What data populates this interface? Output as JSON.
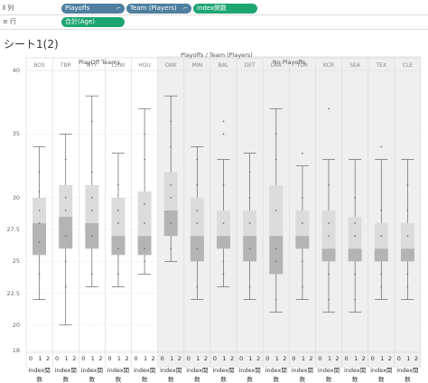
{
  "shelves": {
    "columns": {
      "label": "列",
      "icon": "columns-icon",
      "pills": [
        {
          "label": "Playoffs",
          "color": "#4f7f9f"
        },
        {
          "label": "Team (Players)",
          "color": "#4f7f9f"
        },
        {
          "label": "index関数",
          "color": "#1ea672"
        }
      ]
    },
    "rows": {
      "label": "行",
      "icon": "rows-icon",
      "pills": [
        {
          "label": "合計(Age)",
          "color": "#1ea672"
        }
      ]
    }
  },
  "sheet_title": "シート1(2)",
  "header": {
    "top": "Playoffs / Team (Players)",
    "groups": [
      "PlayOff Teams",
      "No Playoffs"
    ]
  },
  "chart_data": {
    "type": "box",
    "ylim": [
      18,
      40
    ],
    "yticks": [
      18,
      20,
      22.5,
      25,
      27.5,
      30,
      35,
      40
    ],
    "x_axis_label": "index関数",
    "x_tick_labels": [
      "0",
      "1",
      "2"
    ],
    "teams": [
      {
        "name": "BOS",
        "group": "PlayOff Teams",
        "whisker_low": 22,
        "q1": 25.5,
        "median": 28,
        "q3": 30,
        "whisker_high": 34,
        "points": [
          24,
          26.5,
          28,
          29,
          30.5,
          32
        ]
      },
      {
        "name": "TBR",
        "group": "PlayOff Teams",
        "whisker_low": 20,
        "q1": 26,
        "median": 28.5,
        "q3": 31,
        "whisker_high": 35,
        "points": [
          23,
          25,
          27,
          29,
          30,
          33
        ]
      },
      {
        "name": "NYY",
        "group": "PlayOff Teams",
        "whisker_low": 23,
        "q1": 26,
        "median": 28,
        "q3": 31,
        "whisker_high": 38,
        "points": [
          24,
          27,
          29,
          30,
          32,
          36
        ]
      },
      {
        "name": "CHW",
        "group": "PlayOff Teams",
        "whisker_low": 23,
        "q1": 25.5,
        "median": 27,
        "q3": 30,
        "whisker_high": 33.5,
        "points": [
          24,
          26,
          28,
          29,
          31
        ]
      },
      {
        "name": "HOU",
        "group": "PlayOff Teams",
        "whisker_low": 24,
        "q1": 25.5,
        "median": 27,
        "q3": 30.5,
        "whisker_high": 37,
        "points": [
          25,
          26,
          28,
          29.5,
          33,
          35
        ]
      },
      {
        "name": "OAK",
        "group": "No Playoffs",
        "whisker_low": 25,
        "q1": 27,
        "median": 29,
        "q3": 32,
        "whisker_high": 38,
        "points": [
          26,
          28,
          30,
          31,
          34,
          36
        ]
      },
      {
        "name": "MIN",
        "group": "No Playoffs",
        "whisker_low": 22,
        "q1": 25,
        "median": 27,
        "q3": 30,
        "whisker_high": 34,
        "points": [
          23,
          26,
          28,
          29,
          31,
          33
        ]
      },
      {
        "name": "BAL",
        "group": "No Playoffs",
        "whisker_low": 23,
        "q1": 26,
        "median": 27,
        "q3": 29,
        "whisker_high": 33,
        "points": [
          24,
          25,
          28,
          31,
          35,
          36
        ]
      },
      {
        "name": "DET",
        "group": "No Playoffs",
        "whisker_low": 22,
        "q1": 25,
        "median": 27,
        "q3": 29,
        "whisker_high": 33.5,
        "points": [
          23,
          26,
          28,
          30,
          32
        ]
      },
      {
        "name": "LAA",
        "group": "No Playoffs",
        "whisker_low": 21,
        "q1": 24,
        "median": 27,
        "q3": 31,
        "whisker_high": 37,
        "points": [
          22,
          25,
          26,
          29,
          33,
          35
        ]
      },
      {
        "name": "TOR",
        "group": "No Playoffs",
        "whisker_low": 22,
        "q1": 26,
        "median": 27,
        "q3": 29,
        "whisker_high": 32.5,
        "points": [
          23,
          25,
          28,
          30,
          33.5
        ]
      },
      {
        "name": "KCR",
        "group": "No Playoffs",
        "whisker_low": 21,
        "q1": 25,
        "median": 26,
        "q3": 29,
        "whisker_high": 33,
        "points": [
          22,
          24,
          27,
          28,
          31,
          37
        ]
      },
      {
        "name": "SEA",
        "group": "No Playoffs",
        "whisker_low": 21,
        "q1": 25,
        "median": 26,
        "q3": 28.5,
        "whisker_high": 33,
        "points": [
          22,
          24,
          27,
          28,
          30
        ]
      },
      {
        "name": "TEX",
        "group": "No Playoffs",
        "whisker_low": 22,
        "q1": 25,
        "median": 26,
        "q3": 28,
        "whisker_high": 33,
        "points": [
          23,
          24,
          27,
          29,
          34
        ]
      },
      {
        "name": "CLE",
        "group": "No Playoffs",
        "whisker_low": 22,
        "q1": 25,
        "median": 26,
        "q3": 28,
        "whisker_high": 33,
        "points": [
          23,
          24,
          27,
          29,
          31
        ]
      }
    ]
  }
}
